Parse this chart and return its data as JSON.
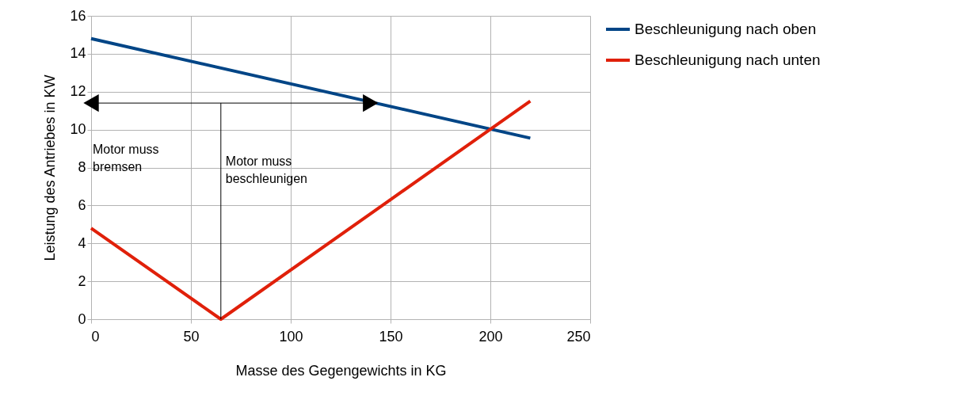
{
  "chart_data": {
    "type": "line",
    "xlabel": "Masse des Gegengewichts in KG",
    "ylabel": "Leistung des Antriebes in KW",
    "series": [
      {
        "name": "Beschleunigung nach oben",
        "color": "#004586",
        "x": [
          0,
          220
        ],
        "values": [
          14.8,
          9.55
        ]
      },
      {
        "name": "Beschleunigung nach unten",
        "color": "#e0200a",
        "x": [
          0,
          65,
          220
        ],
        "values": [
          4.8,
          0,
          11.5
        ]
      },
      {
        "color": "#000000",
        "x": [
          0,
          140
        ],
        "values": [
          11.4,
          11.4
        ],
        "marker": "triangle"
      },
      {
        "color": "#000000",
        "x": [
          65,
          65
        ],
        "values": [
          0,
          11.4
        ]
      }
    ],
    "xlim": [
      0,
      250
    ],
    "xticks": [
      0,
      50,
      100,
      150,
      200,
      250
    ],
    "ylim": [
      0,
      16
    ],
    "yticks": [
      0,
      2,
      4,
      6,
      8,
      10,
      12,
      14,
      16
    ],
    "annotations": [
      "Motor muss\nbremsen",
      "Motor muss\nbeschleunigen"
    ],
    "grid": true,
    "legend": "right",
    "marker": "none",
    "line_style": "solid"
  }
}
